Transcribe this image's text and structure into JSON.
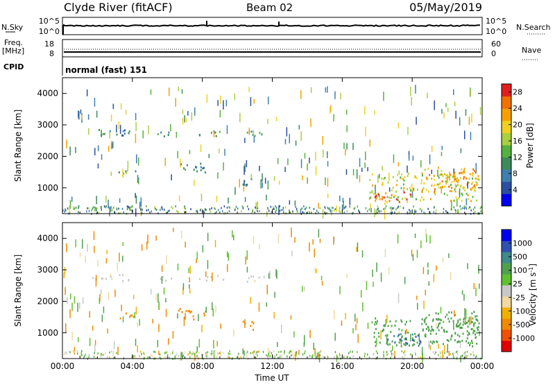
{
  "header": {
    "station": "Clyde River (fitACF)",
    "beam": "Beam 02",
    "date": "05/May/2019"
  },
  "top_panels": {
    "nsky": {
      "label": "N.Sky",
      "tick_top": "10^5",
      "tick_bottom": "10^0"
    },
    "nsearch": {
      "label": "N.Search",
      "tick_top": "10^5",
      "tick_bottom": "10^0"
    },
    "freq": {
      "label_line1": "Freq.",
      "label_line2": "[MHz]",
      "tick_top": "18",
      "tick_bottom": "8"
    },
    "nave": {
      "label": "Nave",
      "tick_top": "60",
      "tick_bottom": "0"
    },
    "cpid": {
      "label": "CPID",
      "value": "normal (fast) 151"
    }
  },
  "colors": {
    "power": [
      "#0000ee",
      "#2a4ea0",
      "#3f7fb0",
      "#3c8a5c",
      "#55b040",
      "#a8d040",
      "#f0d020",
      "#f5a000",
      "#f07000",
      "#e02020"
    ],
    "velocity": [
      "#e00000",
      "#f05000",
      "#f08a00",
      "#f0b000",
      "#f0d8a0",
      "#c8c8c8",
      "#60c030",
      "#50a050",
      "#3c8a8a",
      "#3050b0",
      "#0000ee"
    ]
  },
  "chart_data": [
    {
      "type": "heatmap",
      "name": "power_panel",
      "xlabel": "Time UT",
      "ylabel": "Slant Range [km]",
      "xlim": [
        0,
        24
      ],
      "ylim": [
        180,
        4500
      ],
      "x_ticks": [
        "00:00",
        "04:00",
        "08:00",
        "12:00",
        "16:00",
        "20:00",
        "00:00"
      ],
      "y_ticks": [
        "1000",
        "2000",
        "3000",
        "4000"
      ],
      "colorbar": {
        "label": "Power [dB]",
        "ticks": [
          "4",
          "8",
          "12",
          "16",
          "20",
          "24",
          "28"
        ],
        "range": [
          0,
          30
        ]
      },
      "regions": [
        {
          "t0": 1.7,
          "t1": 3.8,
          "r0": 2650,
          "r1": 2900,
          "value": 9
        },
        {
          "t0": 5.2,
          "t1": 6.2,
          "r0": 2650,
          "r1": 2850,
          "value": 10
        },
        {
          "t0": 3.2,
          "t1": 4.2,
          "r0": 1450,
          "r1": 1700,
          "value": 12
        },
        {
          "t0": 6.6,
          "t1": 8.2,
          "r0": 1450,
          "r1": 1800,
          "value": 10
        },
        {
          "t0": 7.8,
          "t1": 9.2,
          "r0": 2650,
          "r1": 2850,
          "value": 9
        },
        {
          "t0": 10.4,
          "t1": 11.6,
          "r0": 2650,
          "r1": 2900,
          "value": 10
        },
        {
          "t0": 10.2,
          "t1": 11.0,
          "r0": 1100,
          "r1": 1400,
          "value": 9
        },
        {
          "t0": 17.5,
          "t1": 23.8,
          "r0": 600,
          "r1": 1500,
          "value": 18
        },
        {
          "t0": 20.5,
          "t1": 23.8,
          "r0": 900,
          "r1": 1700,
          "value": 22
        },
        {
          "t0": 17.8,
          "t1": 20.0,
          "r0": 500,
          "r1": 900,
          "value": 24
        }
      ]
    },
    {
      "type": "heatmap",
      "name": "velocity_panel",
      "xlabel": "Time UT",
      "ylabel": "Slant Range [km]",
      "xlim": [
        0,
        24
      ],
      "ylim": [
        180,
        4500
      ],
      "x_ticks": [
        "00:00",
        "04:00",
        "08:00",
        "12:00",
        "16:00",
        "20:00",
        "00:00"
      ],
      "y_ticks": [
        "1000",
        "2000",
        "3000",
        "4000"
      ],
      "colorbar": {
        "label": "Velocity [m s^-1]",
        "ticks": [
          "1000",
          "500",
          "100",
          "25",
          "-25",
          "-100",
          "-500",
          "-1000"
        ]
      },
      "regions": [
        {
          "t0": 1.7,
          "t1": 3.8,
          "r0": 2650,
          "r1": 2900,
          "value": 0
        },
        {
          "t0": 5.2,
          "t1": 6.2,
          "r0": 2650,
          "r1": 2850,
          "value": 0
        },
        {
          "t0": 3.2,
          "t1": 4.2,
          "r0": 1450,
          "r1": 1700,
          "value": -150
        },
        {
          "t0": 6.6,
          "t1": 8.2,
          "r0": 1450,
          "r1": 1800,
          "value": -200
        },
        {
          "t0": 7.8,
          "t1": 9.2,
          "r0": 2650,
          "r1": 2850,
          "value": 0
        },
        {
          "t0": 10.4,
          "t1": 11.6,
          "r0": 2650,
          "r1": 2900,
          "value": 0
        },
        {
          "t0": 10.2,
          "t1": 11.0,
          "r0": 1100,
          "r1": 1400,
          "value": -300
        },
        {
          "t0": 17.5,
          "t1": 23.8,
          "r0": 600,
          "r1": 1500,
          "value": 150
        },
        {
          "t0": 20.5,
          "t1": 23.8,
          "r0": 900,
          "r1": 1700,
          "value": 200
        },
        {
          "t0": 18.5,
          "t1": 20.5,
          "r0": 600,
          "r1": 1000,
          "value": 700
        }
      ]
    }
  ]
}
